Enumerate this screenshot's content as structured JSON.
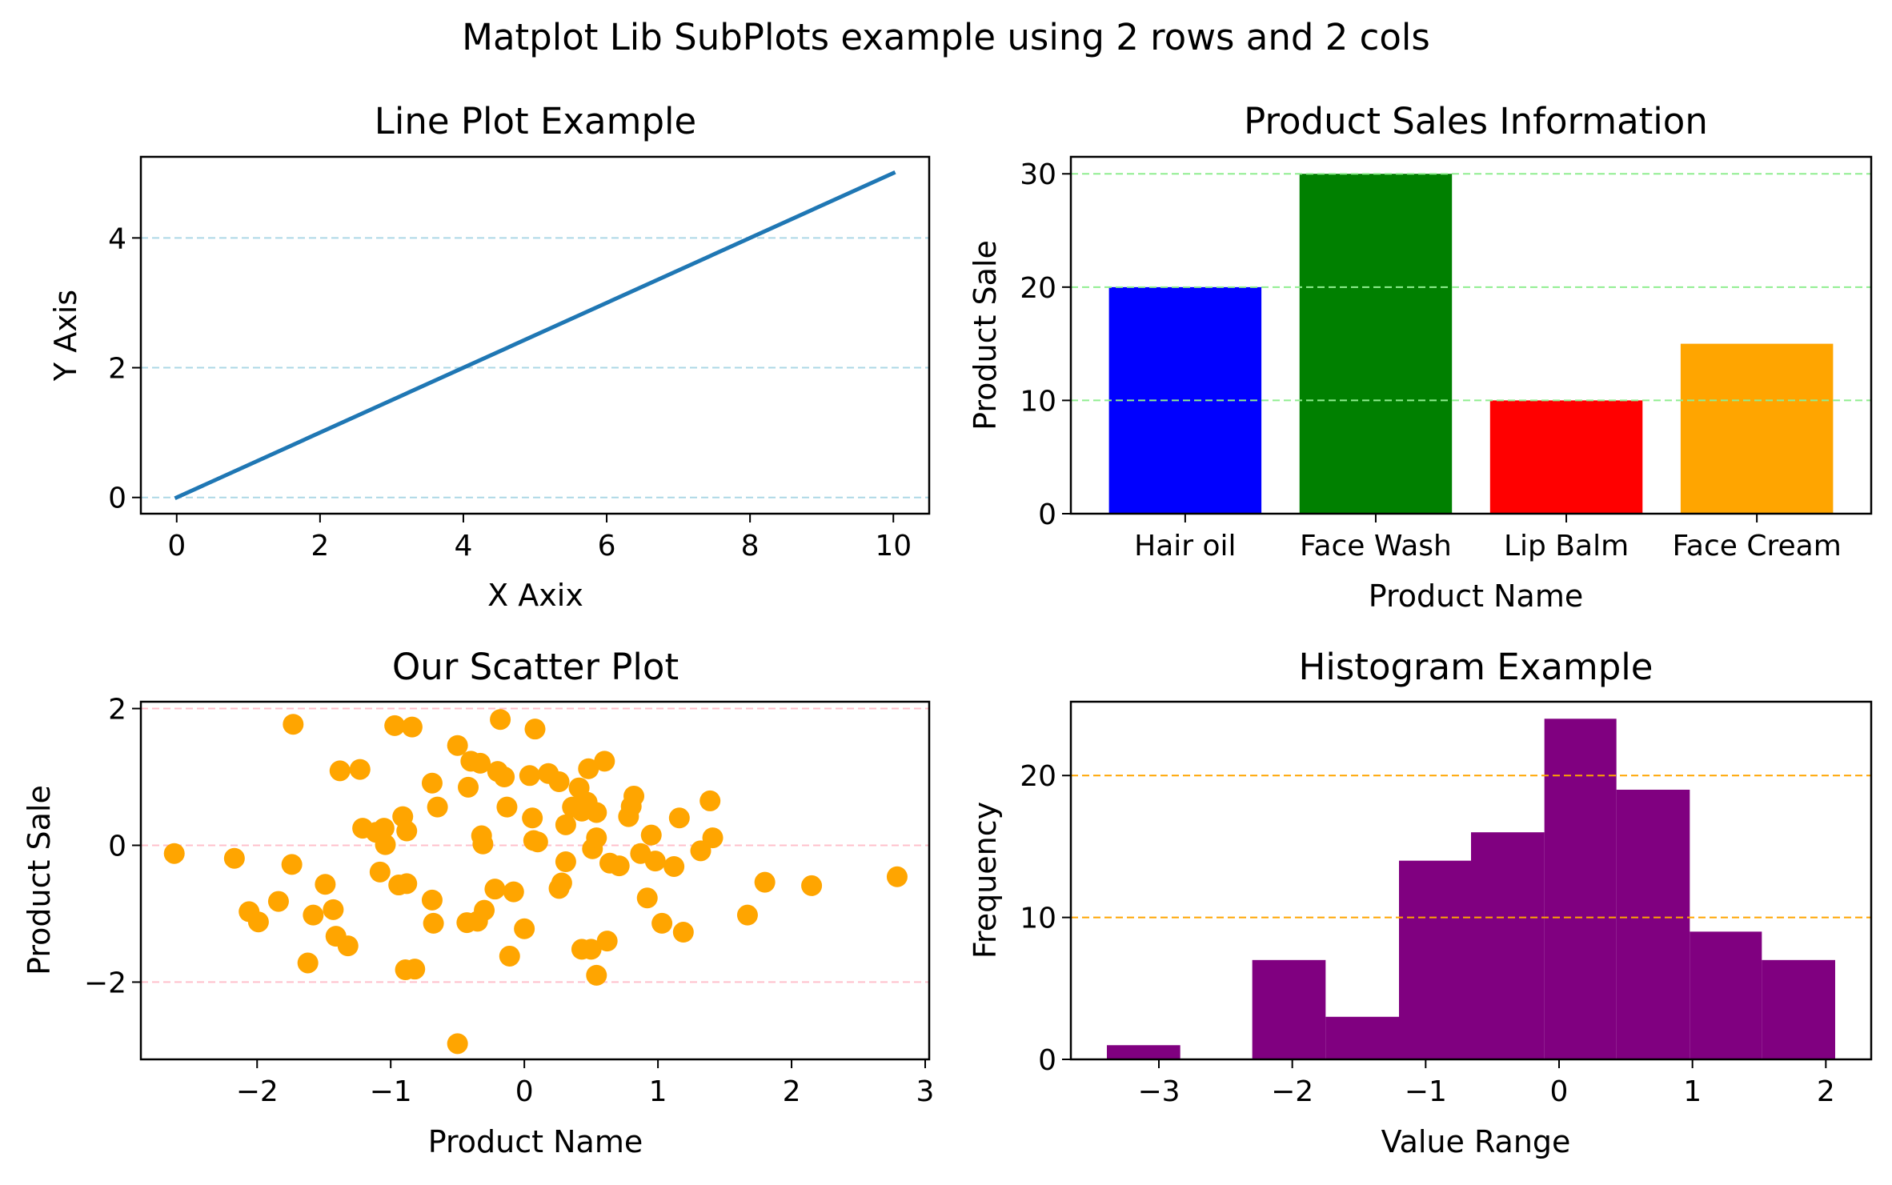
{
  "figure": {
    "suptitle": "Matplot Lib SubPlots example using 2 rows and 2 cols"
  },
  "chart_data": [
    {
      "type": "line",
      "title": "Line Plot Example",
      "xlabel": "X Axix",
      "ylabel": "Y Axis",
      "xlim": [
        -0.5,
        10.5
      ],
      "ylim": [
        -0.25,
        5.25
      ],
      "xticks": [
        0,
        2,
        4,
        6,
        8,
        10
      ],
      "yticks": [
        0,
        2,
        4
      ],
      "grid": {
        "axis": "y",
        "style": "dashed",
        "color": "#add8e6"
      },
      "series": [
        {
          "color": "#1f77b4",
          "x": [
            0,
            10
          ],
          "y": [
            0,
            5
          ]
        }
      ]
    },
    {
      "type": "bar",
      "title": "Product Sales Information",
      "xlabel": "Product Name",
      "ylabel": "Product Sale",
      "ylim": [
        0,
        31.5
      ],
      "yticks": [
        0,
        10,
        20,
        30
      ],
      "grid": {
        "axis": "y",
        "style": "dashed",
        "color": "#90ee90"
      },
      "categories": [
        "Hair oil",
        "Face Wash",
        "Lip Balm",
        "Face Cream"
      ],
      "values": [
        20,
        30,
        10,
        15
      ],
      "colors": [
        "#0000ff",
        "#008000",
        "#ff0000",
        "#ffa500"
      ]
    },
    {
      "type": "scatter",
      "title": "Our Scatter Plot",
      "xlabel": "Product Name",
      "ylabel": "Product Sale",
      "xlim": [
        -2.87,
        3.03
      ],
      "ylim": [
        -3.13,
        2.1
      ],
      "xticks": [
        -2,
        -1,
        0,
        1,
        2,
        3
      ],
      "yticks": [
        -2,
        0,
        2
      ],
      "grid": {
        "axis": "y",
        "style": "dashed",
        "color": "#ffc0cb"
      },
      "color": "#ffa500",
      "points": [
        [
          -2.62,
          -0.12
        ],
        [
          -2.17,
          -0.19
        ],
        [
          -2.06,
          -0.97
        ],
        [
          -1.99,
          -1.12
        ],
        [
          -1.84,
          -0.82
        ],
        [
          -1.73,
          1.77
        ],
        [
          -1.74,
          -0.28
        ],
        [
          -1.62,
          -1.72
        ],
        [
          -1.58,
          -1.02
        ],
        [
          -1.49,
          -0.57
        ],
        [
          -1.43,
          -0.94
        ],
        [
          -1.41,
          -1.33
        ],
        [
          -1.38,
          1.09
        ],
        [
          -1.32,
          -1.47
        ],
        [
          -1.23,
          1.11
        ],
        [
          -1.21,
          0.25
        ],
        [
          -1.11,
          0.19
        ],
        [
          -1.08,
          -0.39
        ],
        [
          -1.05,
          0.25
        ],
        [
          -1.04,
          0.01
        ],
        [
          -0.97,
          1.75
        ],
        [
          -0.94,
          -0.58
        ],
        [
          -0.91,
          0.42
        ],
        [
          -0.89,
          -1.82
        ],
        [
          -0.88,
          -0.56
        ],
        [
          -0.88,
          0.21
        ],
        [
          -0.84,
          1.73
        ],
        [
          -0.82,
          -1.81
        ],
        [
          -0.69,
          0.91
        ],
        [
          -0.69,
          -0.8
        ],
        [
          -0.68,
          -1.14
        ],
        [
          -0.65,
          0.56
        ],
        [
          -0.5,
          1.46
        ],
        [
          -0.5,
          -2.9
        ],
        [
          -0.43,
          -1.13
        ],
        [
          -0.42,
          0.85
        ],
        [
          -0.4,
          1.23
        ],
        [
          -0.35,
          -1.11
        ],
        [
          -0.33,
          1.2
        ],
        [
          -0.32,
          0.14
        ],
        [
          -0.31,
          0.02
        ],
        [
          -0.3,
          -0.95
        ],
        [
          -0.22,
          -0.64
        ],
        [
          -0.2,
          1.08
        ],
        [
          -0.18,
          1.84
        ],
        [
          -0.15,
          1.0
        ],
        [
          -0.13,
          0.56
        ],
        [
          -0.11,
          -1.62
        ],
        [
          -0.08,
          -0.68
        ],
        [
          0.0,
          -1.22
        ],
        [
          0.04,
          1.02
        ],
        [
          0.06,
          0.4
        ],
        [
          0.07,
          0.07
        ],
        [
          0.08,
          1.7
        ],
        [
          0.1,
          0.05
        ],
        [
          0.18,
          1.05
        ],
        [
          0.26,
          0.93
        ],
        [
          0.26,
          -0.63
        ],
        [
          0.28,
          -0.55
        ],
        [
          0.31,
          0.3
        ],
        [
          0.31,
          -0.24
        ],
        [
          0.36,
          0.56
        ],
        [
          0.41,
          0.84
        ],
        [
          0.43,
          0.5
        ],
        [
          0.43,
          -1.52
        ],
        [
          0.47,
          0.63
        ],
        [
          0.48,
          1.12
        ],
        [
          0.5,
          -1.52
        ],
        [
          0.51,
          -0.05
        ],
        [
          0.54,
          -1.9
        ],
        [
          0.54,
          0.11
        ],
        [
          0.54,
          0.48
        ],
        [
          0.6,
          1.23
        ],
        [
          0.62,
          -1.4
        ],
        [
          0.64,
          -0.26
        ],
        [
          0.71,
          -0.3
        ],
        [
          0.78,
          0.42
        ],
        [
          0.8,
          0.57
        ],
        [
          0.82,
          0.72
        ],
        [
          0.87,
          -0.12
        ],
        [
          0.92,
          -0.77
        ],
        [
          0.95,
          0.15
        ],
        [
          0.98,
          -0.23
        ],
        [
          1.03,
          -1.14
        ],
        [
          1.12,
          -0.31
        ],
        [
          1.16,
          0.4
        ],
        [
          1.19,
          -1.27
        ],
        [
          1.32,
          -0.08
        ],
        [
          1.39,
          0.65
        ],
        [
          1.41,
          0.11
        ],
        [
          1.67,
          -1.02
        ],
        [
          1.8,
          -0.54
        ],
        [
          2.15,
          -0.59
        ],
        [
          2.79,
          -0.46
        ]
      ]
    },
    {
      "type": "bar",
      "subtype": "histogram",
      "title": "Histogram Example",
      "xlabel": "Value Range",
      "ylabel": "Frequency",
      "xlim": [
        -3.66,
        2.34
      ],
      "ylim": [
        0,
        25.2
      ],
      "xticks": [
        -3,
        -2,
        -1,
        0,
        1,
        2
      ],
      "yticks": [
        0,
        10,
        20
      ],
      "grid": {
        "axis": "y",
        "style": "dashed",
        "color": "#ffa500"
      },
      "color": "#800080",
      "bin_edges": [
        -3.39,
        -2.84,
        -2.3,
        -1.75,
        -1.2,
        -0.66,
        -0.11,
        0.43,
        0.98,
        1.52,
        2.07
      ],
      "counts": [
        1,
        0,
        7,
        3,
        14,
        16,
        24,
        19,
        9,
        7
      ]
    }
  ]
}
